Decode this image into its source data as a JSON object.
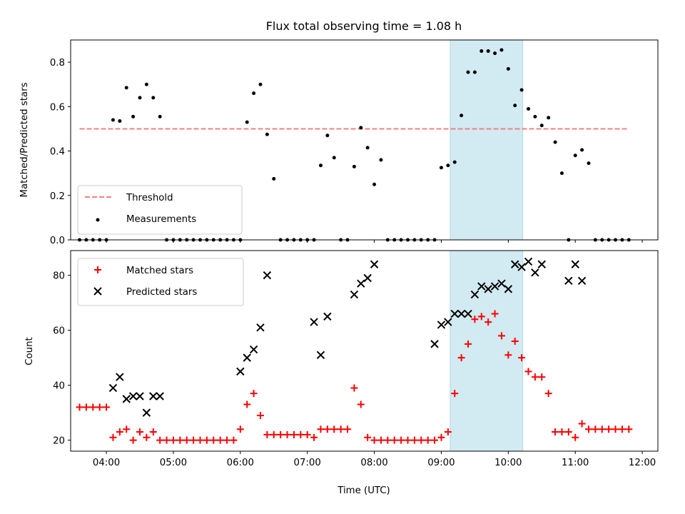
{
  "chart_data": [
    {
      "type": "scatter",
      "title": "Flux total observing time = 1.08 h",
      "ylabel": "Matched/Predicted stars",
      "xlabel": "",
      "ylim": [
        0,
        0.9
      ],
      "xlim": [
        "03:28",
        "12:14"
      ],
      "yticks": [
        "0.0",
        "0.2",
        "0.4",
        "0.6",
        "0.8"
      ],
      "grid": false,
      "legend": {
        "placement": "lower-left",
        "entries": [
          "Threshold",
          "Measurements"
        ]
      },
      "highlight_span": {
        "start": "09:08",
        "end": "10:13",
        "color": "#add8e6"
      },
      "series": [
        {
          "name": "Threshold",
          "kind": "dashed-line",
          "color": "#f08080",
          "x": [
            "03:36",
            "11:48"
          ],
          "y": [
            0.5,
            0.5
          ]
        },
        {
          "name": "Measurements",
          "kind": "points",
          "color": "#000000",
          "x": [
            "03:36",
            "03:42",
            "03:48",
            "03:54",
            "04:00",
            "04:06",
            "04:12",
            "04:18",
            "04:24",
            "04:30",
            "04:36",
            "04:42",
            "04:48",
            "04:54",
            "05:00",
            "05:06",
            "05:12",
            "05:18",
            "05:24",
            "05:30",
            "05:36",
            "05:42",
            "05:48",
            "05:54",
            "06:00",
            "06:06",
            "06:12",
            "06:18",
            "06:24",
            "06:30",
            "06:36",
            "06:42",
            "06:48",
            "06:54",
            "07:00",
            "07:06",
            "07:12",
            "07:18",
            "07:24",
            "07:30",
            "07:36",
            "07:42",
            "07:48",
            "07:54",
            "08:00",
            "08:06",
            "08:12",
            "08:18",
            "08:24",
            "08:30",
            "08:36",
            "08:42",
            "08:48",
            "08:54",
            "09:00",
            "09:06",
            "09:12",
            "09:18",
            "09:24",
            "09:30",
            "09:36",
            "09:42",
            "09:48",
            "09:54",
            "10:00",
            "10:06",
            "10:12",
            "10:18",
            "10:24",
            "10:30",
            "10:36",
            "10:42",
            "10:48",
            "10:54",
            "11:00",
            "11:06",
            "11:12",
            "11:18",
            "11:24",
            "11:30",
            "11:36",
            "11:42",
            "11:48"
          ],
          "y": [
            0,
            0,
            0,
            0,
            0,
            0.54,
            0.535,
            0.685,
            0.555,
            0.64,
            0.7,
            0.64,
            0.555,
            0,
            0,
            0,
            0,
            0,
            0,
            0,
            0,
            0,
            0,
            0,
            0,
            0.53,
            0.66,
            0.7,
            0.475,
            0.275,
            0,
            0,
            0,
            0,
            0,
            0,
            0.335,
            0.47,
            0.37,
            0,
            0,
            0.33,
            0.505,
            0.415,
            0.25,
            0.36,
            0,
            0,
            0,
            0,
            0,
            0,
            0,
            0,
            0.325,
            0.335,
            0.35,
            0.56,
            0.755,
            0.755,
            0.85,
            0.85,
            0.84,
            0.855,
            0.77,
            0.605,
            0.675,
            0.59,
            0.555,
            0.515,
            0.55,
            0.44,
            0.3,
            0,
            0.38,
            0.405,
            0.345,
            0,
            0,
            0,
            0,
            0,
            0
          ]
        }
      ]
    },
    {
      "type": "scatter",
      "title": "",
      "ylabel": "Count",
      "xlabel": "Time (UTC)",
      "ylim": [
        16,
        89
      ],
      "xlim": [
        "03:28",
        "12:14"
      ],
      "yticks": [
        "20",
        "40",
        "60",
        "80"
      ],
      "xticks": [
        "04:00",
        "05:00",
        "06:00",
        "07:00",
        "08:00",
        "09:00",
        "10:00",
        "11:00",
        "12:00"
      ],
      "grid": false,
      "legend": {
        "placement": "top-left",
        "entries": [
          "Matched stars",
          "Predicted stars"
        ]
      },
      "highlight_span": {
        "start": "09:08",
        "end": "10:13",
        "color": "#add8e6"
      },
      "series": [
        {
          "name": "Matched stars",
          "marker": "plus",
          "color": "#ff0000",
          "x": [
            "03:36",
            "03:42",
            "03:48",
            "03:54",
            "04:00",
            "04:06",
            "04:12",
            "04:18",
            "04:24",
            "04:30",
            "04:36",
            "04:42",
            "04:48",
            "04:54",
            "05:00",
            "05:06",
            "05:12",
            "05:18",
            "05:24",
            "05:30",
            "05:36",
            "05:42",
            "05:48",
            "05:54",
            "06:00",
            "06:06",
            "06:12",
            "06:18",
            "06:24",
            "06:30",
            "06:36",
            "06:42",
            "06:48",
            "06:54",
            "07:00",
            "07:06",
            "07:12",
            "07:18",
            "07:24",
            "07:30",
            "07:36",
            "07:42",
            "07:48",
            "07:54",
            "08:00",
            "08:06",
            "08:12",
            "08:18",
            "08:24",
            "08:30",
            "08:36",
            "08:42",
            "08:48",
            "08:54",
            "09:00",
            "09:06",
            "09:12",
            "09:18",
            "09:24",
            "09:30",
            "09:36",
            "09:42",
            "09:48",
            "09:54",
            "10:00",
            "10:06",
            "10:12",
            "10:18",
            "10:24",
            "10:30",
            "10:36",
            "10:42",
            "10:48",
            "10:54",
            "11:00",
            "11:06",
            "11:12",
            "11:18",
            "11:24",
            "11:30",
            "11:36",
            "11:42",
            "11:48"
          ],
          "y": [
            32,
            32,
            32,
            32,
            32,
            21,
            23,
            24,
            20,
            23,
            21,
            23,
            20,
            20,
            20,
            20,
            20,
            20,
            20,
            20,
            20,
            20,
            20,
            20,
            24,
            33,
            37,
            29,
            22,
            22,
            22,
            22,
            22,
            22,
            22,
            21,
            24,
            24,
            24,
            24,
            24,
            39,
            33,
            21,
            20,
            20,
            20,
            20,
            20,
            20,
            20,
            20,
            20,
            20,
            21,
            23,
            37,
            50,
            55,
            64,
            65,
            63,
            66,
            58,
            51,
            56,
            50,
            45,
            43,
            43,
            37,
            23,
            23,
            23,
            21,
            26,
            24,
            24,
            24,
            24,
            24,
            24,
            24
          ]
        },
        {
          "name": "Predicted stars",
          "marker": "x",
          "color": "#000000",
          "x": [
            "04:06",
            "04:12",
            "04:18",
            "04:24",
            "04:30",
            "04:36",
            "04:42",
            "04:48",
            "06:00",
            "06:06",
            "06:12",
            "06:18",
            "06:24",
            "07:06",
            "07:12",
            "07:18",
            "07:42",
            "07:48",
            "07:54",
            "08:00",
            "08:54",
            "09:00",
            "09:06",
            "09:12",
            "09:18",
            "09:24",
            "09:30",
            "09:36",
            "09:42",
            "09:48",
            "09:54",
            "10:00",
            "10:06",
            "10:12",
            "10:18",
            "10:24",
            "10:30",
            "10:54",
            "11:00",
            "11:06"
          ],
          "y": [
            39,
            43,
            35,
            36,
            36,
            30,
            36,
            36,
            45,
            50,
            53,
            61,
            80,
            63,
            51,
            65,
            73,
            77,
            79,
            84,
            55,
            62,
            63,
            66,
            66,
            66,
            73,
            76,
            75,
            76,
            77,
            75,
            84,
            83,
            85,
            81,
            84,
            78,
            84,
            78
          ]
        }
      ]
    }
  ]
}
